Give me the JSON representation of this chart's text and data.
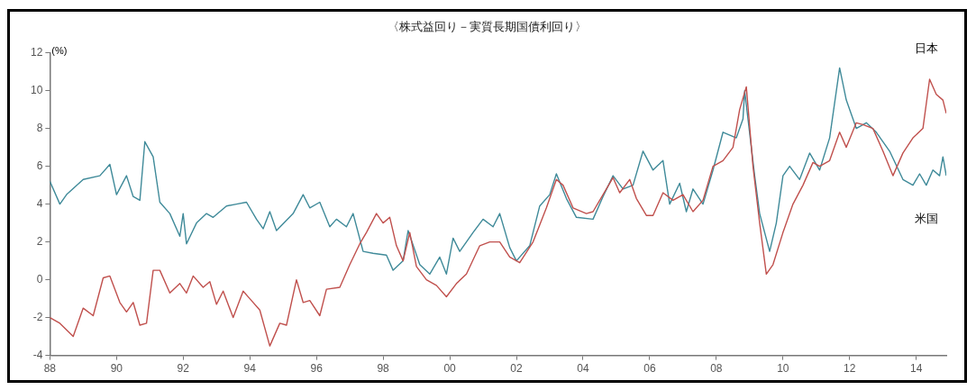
{
  "chart_data": {
    "type": "line",
    "title": "〈株式益回り－実質長期国債利回り〉",
    "ylabel": "(%)",
    "xlim": [
      1988,
      2014.9
    ],
    "xticks": [
      {
        "value": 1988,
        "label": "88"
      },
      {
        "value": 1990,
        "label": "90"
      },
      {
        "value": 1992,
        "label": "92"
      },
      {
        "value": 1994,
        "label": "94"
      },
      {
        "value": 1996,
        "label": "96"
      },
      {
        "value": 1998,
        "label": "98"
      },
      {
        "value": 2000,
        "label": "00"
      },
      {
        "value": 2002,
        "label": "02"
      },
      {
        "value": 2004,
        "label": "04"
      },
      {
        "value": 2006,
        "label": "06"
      },
      {
        "value": 2008,
        "label": "08"
      },
      {
        "value": 2010,
        "label": "10"
      },
      {
        "value": 2012,
        "label": "12"
      },
      {
        "value": 2014,
        "label": "14"
      }
    ],
    "ylim": [
      -4,
      12
    ],
    "yticks": [
      -4,
      -2,
      0,
      2,
      4,
      6,
      8,
      10,
      12
    ],
    "marker": "none",
    "line_style": "solid",
    "series": [
      {
        "name": "日本",
        "color": "#c0504d",
        "x": [
          1988.0,
          1988.3,
          1988.7,
          1989.0,
          1989.3,
          1989.6,
          1989.8,
          1990.1,
          1990.3,
          1990.5,
          1990.7,
          1990.9,
          1991.1,
          1991.3,
          1991.6,
          1991.9,
          1992.1,
          1992.3,
          1992.6,
          1992.8,
          1993.0,
          1993.2,
          1993.5,
          1993.8,
          1994.0,
          1994.3,
          1994.6,
          1994.9,
          1995.1,
          1995.4,
          1995.6,
          1995.8,
          1996.1,
          1996.3,
          1996.7,
          1997.0,
          1997.3,
          1997.5,
          1997.8,
          1998.0,
          1998.2,
          1998.4,
          1998.6,
          1998.8,
          1999.0,
          1999.3,
          1999.6,
          1999.9,
          2000.2,
          2000.5,
          2000.9,
          2001.2,
          2001.5,
          2001.8,
          2002.1,
          2002.5,
          2002.9,
          2003.2,
          2003.4,
          2003.7,
          2004.1,
          2004.3,
          2004.6,
          2004.9,
          2005.1,
          2005.4,
          2005.6,
          2005.9,
          2006.1,
          2006.4,
          2006.7,
          2007.0,
          2007.3,
          2007.6,
          2007.9,
          2008.2,
          2008.5,
          2008.7,
          2008.9,
          2009.1,
          2009.3,
          2009.5,
          2009.7,
          2010.0,
          2010.3,
          2010.6,
          2010.9,
          2011.1,
          2011.4,
          2011.7,
          2011.9,
          2012.2,
          2012.4,
          2012.7,
          2013.0,
          2013.3,
          2013.6,
          2013.9,
          2014.2,
          2014.4,
          2014.6,
          2014.8,
          2014.9
        ],
        "values": [
          -2.0,
          -2.3,
          -3.0,
          -1.5,
          -1.9,
          0.1,
          0.2,
          -1.2,
          -1.7,
          -1.2,
          -2.4,
          -2.3,
          0.5,
          0.5,
          -0.7,
          -0.2,
          -0.7,
          0.2,
          -0.4,
          -0.1,
          -1.3,
          -0.6,
          -2.0,
          -0.6,
          -1.0,
          -1.6,
          -3.5,
          -2.3,
          -2.4,
          0.0,
          -1.2,
          -1.1,
          -1.9,
          -0.5,
          -0.4,
          0.8,
          1.9,
          2.5,
          3.5,
          3.0,
          3.3,
          1.8,
          1.0,
          2.5,
          0.7,
          0.0,
          -0.3,
          -0.9,
          -0.2,
          0.3,
          1.8,
          2.0,
          2.0,
          1.2,
          0.9,
          2.0,
          3.8,
          5.3,
          5.0,
          3.8,
          3.5,
          3.6,
          4.5,
          5.4,
          4.6,
          5.3,
          4.3,
          3.4,
          3.4,
          4.6,
          4.2,
          4.5,
          3.6,
          4.2,
          6.0,
          6.3,
          7.0,
          9.0,
          10.2,
          6.0,
          3.0,
          0.3,
          0.8,
          2.5,
          4.0,
          5.0,
          6.2,
          6.0,
          6.3,
          7.8,
          7.0,
          8.3,
          8.2,
          8.0,
          6.8,
          5.5,
          6.7,
          7.5,
          8.0,
          10.6,
          9.8,
          9.5,
          8.8
        ]
      },
      {
        "name": "米国",
        "color": "#3f8a99",
        "x": [
          1988.0,
          1988.3,
          1988.5,
          1989.0,
          1989.5,
          1989.8,
          1990.0,
          1990.3,
          1990.5,
          1990.7,
          1990.85,
          1991.1,
          1991.3,
          1991.6,
          1991.9,
          1992.0,
          1992.1,
          1992.4,
          1992.7,
          1992.9,
          1993.3,
          1993.6,
          1993.9,
          1994.2,
          1994.4,
          1994.6,
          1994.8,
          1995.3,
          1995.6,
          1995.8,
          1996.1,
          1996.4,
          1996.6,
          1996.9,
          1997.1,
          1997.4,
          1997.7,
          1998.1,
          1998.3,
          1998.6,
          1998.75,
          1999.1,
          1999.4,
          1999.7,
          1999.9,
          2000.1,
          2000.3,
          2000.7,
          2001.0,
          2001.3,
          2001.5,
          2001.8,
          2002.0,
          2002.4,
          2002.7,
          2003.0,
          2003.2,
          2003.5,
          2003.8,
          2004.3,
          2004.6,
          2004.9,
          2005.2,
          2005.5,
          2005.8,
          2006.1,
          2006.4,
          2006.6,
          2006.9,
          2007.1,
          2007.3,
          2007.6,
          2007.9,
          2008.2,
          2008.6,
          2008.8,
          2008.85,
          2009.15,
          2009.3,
          2009.6,
          2009.8,
          2010.0,
          2010.2,
          2010.5,
          2010.8,
          2011.1,
          2011.4,
          2011.7,
          2011.9,
          2012.2,
          2012.5,
          2012.8,
          2013.2,
          2013.6,
          2013.9,
          2014.1,
          2014.3,
          2014.5,
          2014.7,
          2014.8,
          2014.9
        ],
        "values": [
          5.2,
          4.0,
          4.5,
          5.3,
          5.5,
          6.1,
          4.5,
          5.5,
          4.4,
          4.2,
          7.3,
          6.5,
          4.1,
          3.5,
          2.3,
          3.5,
          1.9,
          3.0,
          3.5,
          3.3,
          3.9,
          4.0,
          4.1,
          3.2,
          2.7,
          3.6,
          2.6,
          3.5,
          4.5,
          3.8,
          4.1,
          2.8,
          3.2,
          2.8,
          3.5,
          1.5,
          1.4,
          1.3,
          0.5,
          1.0,
          2.6,
          0.8,
          0.3,
          1.2,
          0.3,
          2.2,
          1.5,
          2.5,
          3.2,
          2.8,
          3.5,
          1.7,
          1.0,
          1.8,
          3.9,
          4.5,
          5.6,
          4.3,
          3.3,
          3.2,
          4.4,
          5.5,
          4.8,
          5.0,
          6.8,
          5.8,
          6.3,
          4.0,
          5.1,
          3.6,
          4.8,
          4.0,
          5.8,
          7.8,
          7.5,
          8.5,
          10.0,
          5.5,
          3.5,
          1.5,
          3.0,
          5.5,
          6.0,
          5.3,
          6.7,
          5.8,
          7.5,
          11.2,
          9.5,
          8.0,
          8.3,
          7.8,
          6.8,
          5.3,
          5.0,
          5.6,
          5.0,
          5.8,
          5.5,
          6.5,
          5.5
        ]
      }
    ]
  }
}
